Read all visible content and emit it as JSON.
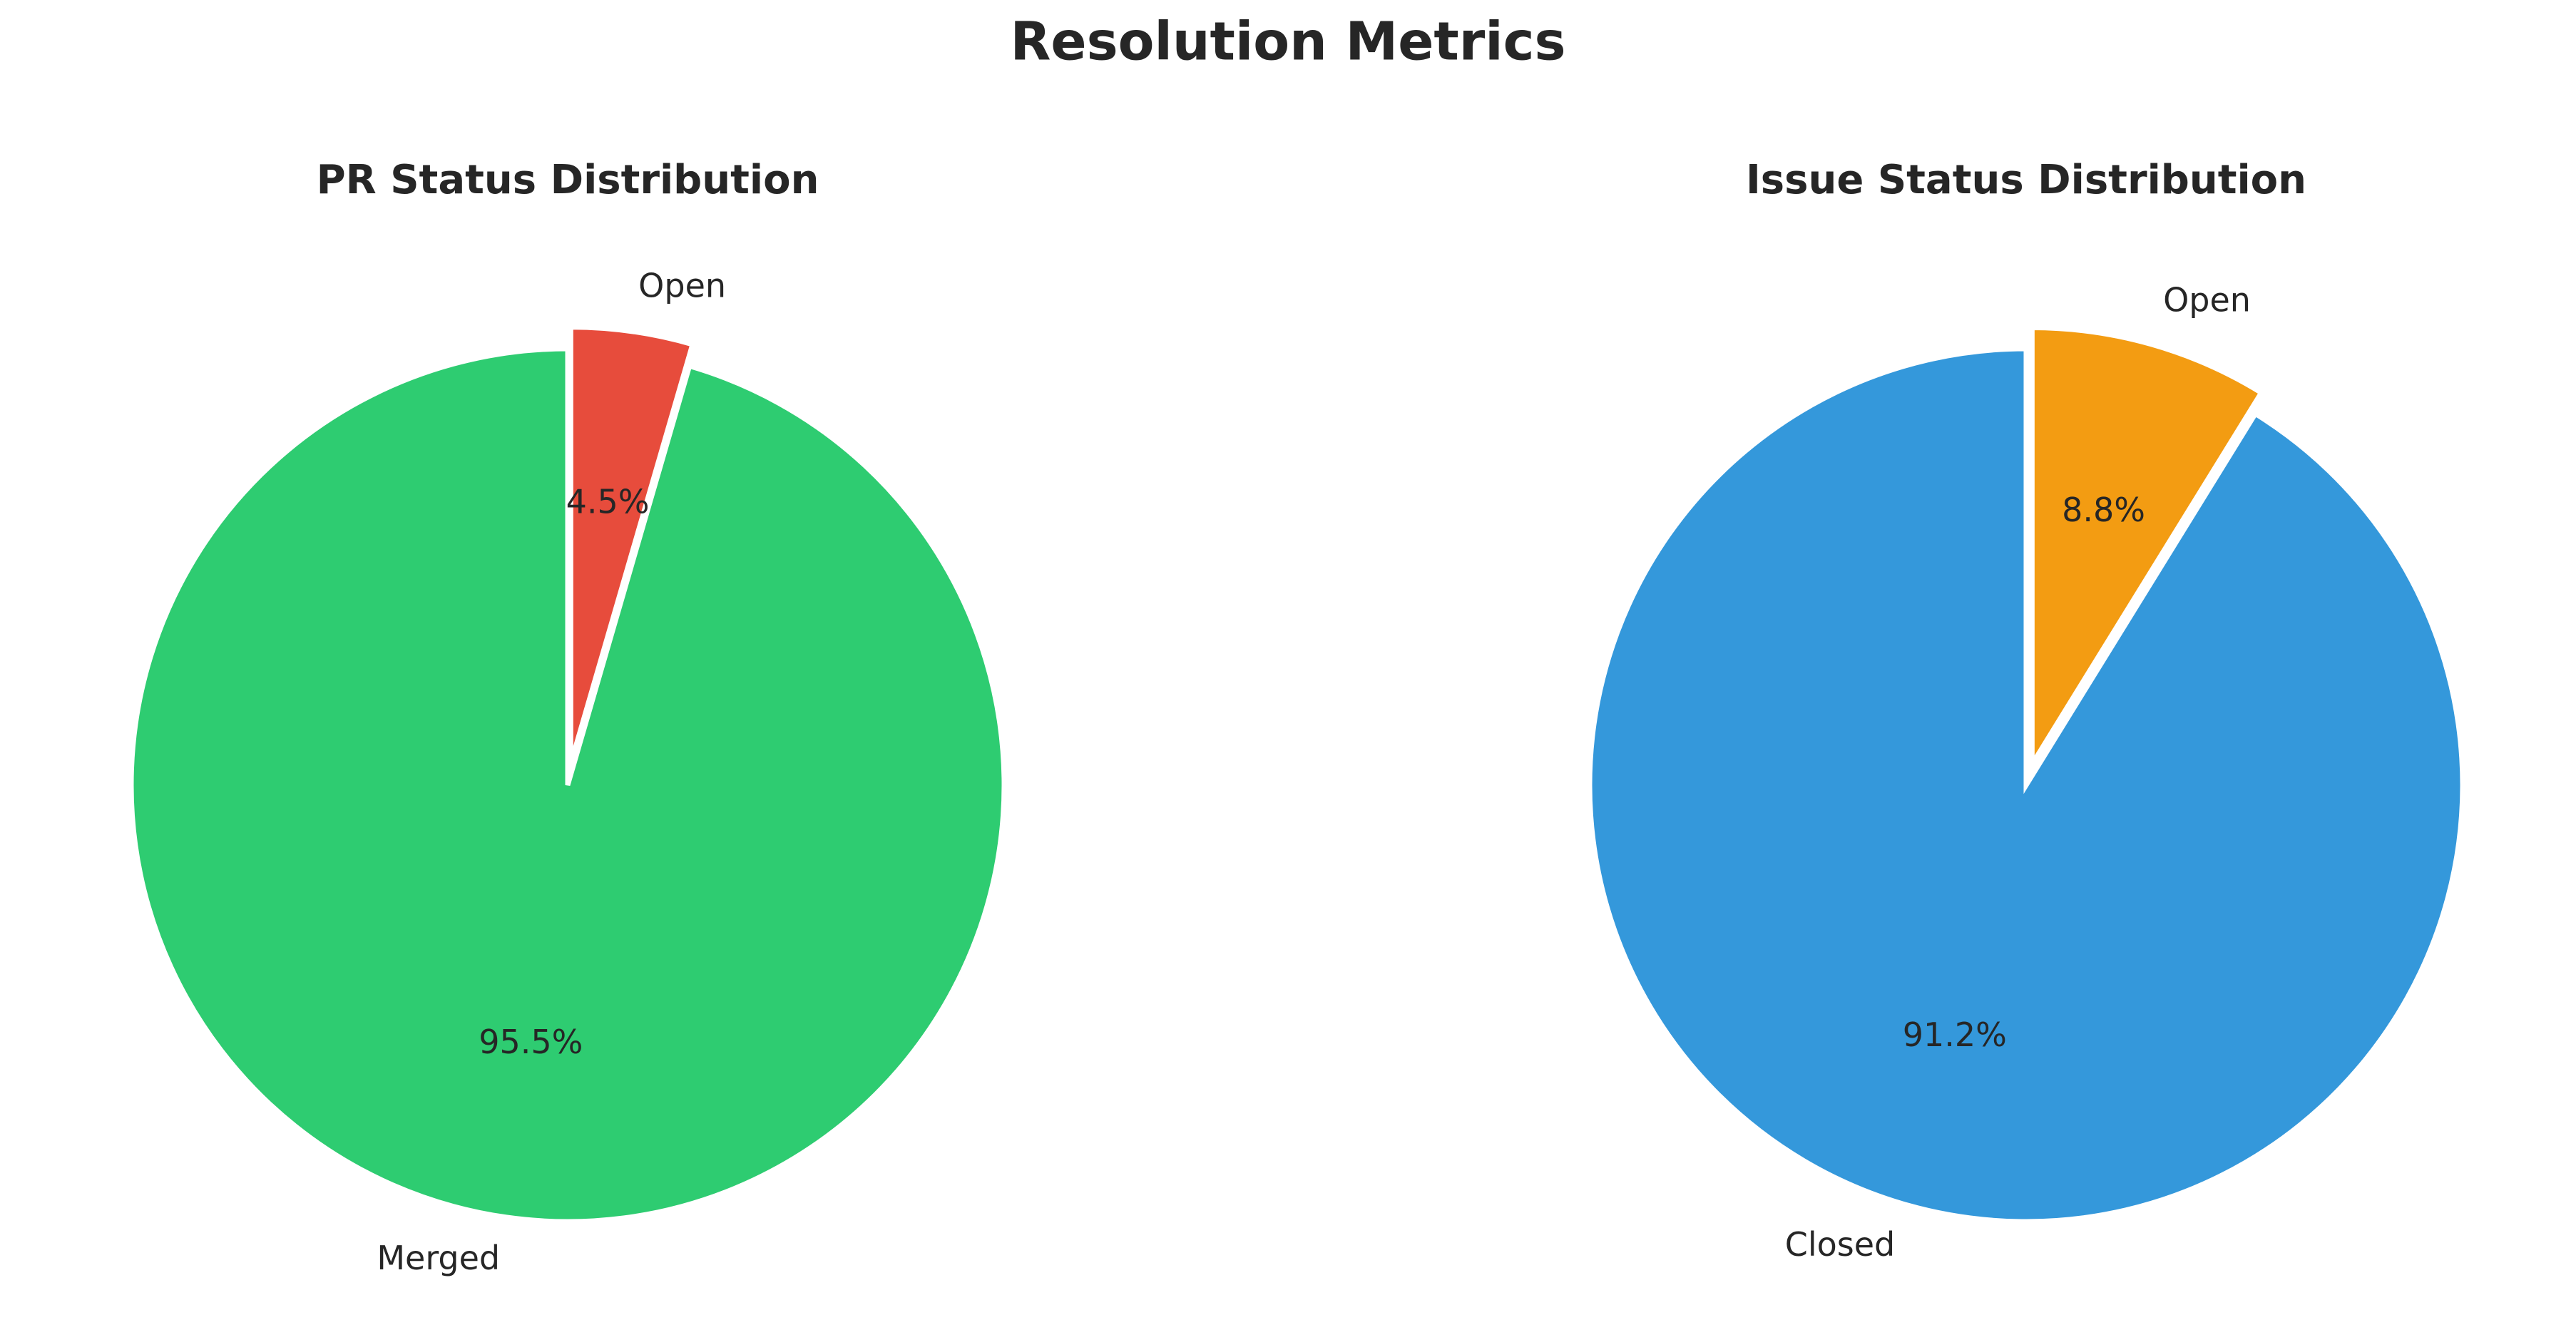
{
  "title": "Resolution Metrics",
  "chart_data": [
    {
      "type": "pie",
      "title": "PR Status Distribution",
      "categories": [
        "Merged",
        "Open"
      ],
      "values": [
        95.5,
        4.5
      ],
      "value_labels": [
        "95.5%",
        "4.5%"
      ],
      "colors": [
        "#2ecc71",
        "#e74c3c"
      ],
      "explode": [
        0,
        0.05
      ],
      "startangle": 90,
      "counterclock": true
    },
    {
      "type": "pie",
      "title": "Issue Status Distribution",
      "categories": [
        "Closed",
        "Open"
      ],
      "values": [
        91.2,
        8.8
      ],
      "value_labels": [
        "91.2%",
        "8.8%"
      ],
      "colors": [
        "#3498db",
        "#f39c12"
      ],
      "explode": [
        0,
        0.05
      ],
      "startangle": 90,
      "counterclock": true
    }
  ]
}
